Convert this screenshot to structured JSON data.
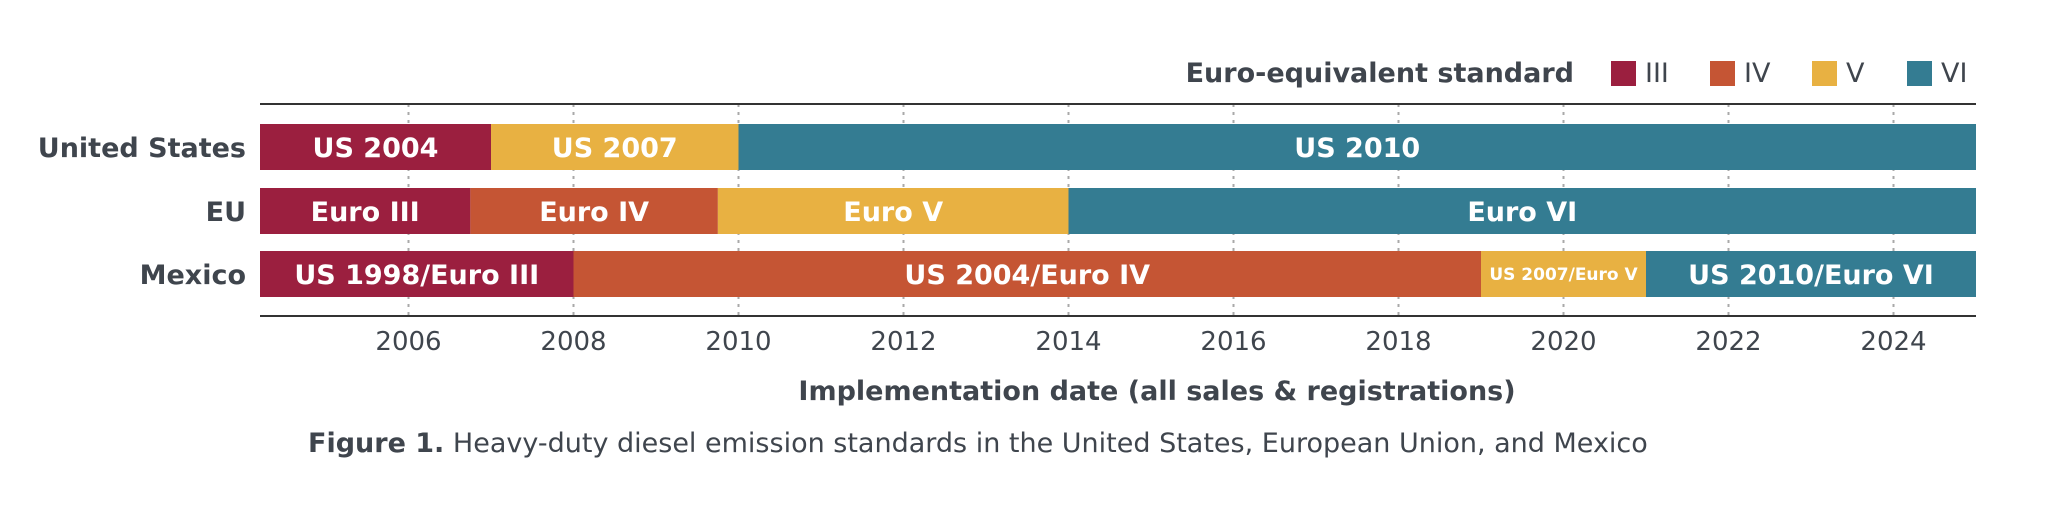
{
  "caption": {
    "label": "Figure 1.",
    "text": "Heavy-duty diesel emission standards in the United States, European Union, and Mexico"
  },
  "chart_data": {
    "type": "bar",
    "orientation": "horizontal-timeline",
    "xlabel": "Implementation date (all sales & registrations)",
    "xlim": [
      2004.2,
      2025
    ],
    "x_ticks": [
      2006,
      2008,
      2010,
      2012,
      2014,
      2016,
      2018,
      2020,
      2022,
      2024
    ],
    "grid": "vertical dotted at ticks",
    "legend": {
      "title": "Euro-equivalent standard",
      "position": "top-right",
      "items": [
        {
          "key": "III",
          "label": "III",
          "color": "#9b1f3f"
        },
        {
          "key": "IV",
          "label": "IV",
          "color": "#c55534"
        },
        {
          "key": "V",
          "label": "V",
          "color": "#e8b142"
        },
        {
          "key": "VI",
          "label": "VI",
          "color": "#347c92"
        }
      ]
    },
    "rows": [
      {
        "label": "United States",
        "segments": [
          {
            "label": "US 2004",
            "start": 2004.2,
            "end": 2007,
            "level": "III"
          },
          {
            "label": "US 2007",
            "start": 2007,
            "end": 2010,
            "level": "V"
          },
          {
            "label": "US 2010",
            "start": 2010,
            "end": 2025,
            "level": "VI"
          }
        ]
      },
      {
        "label": "EU",
        "segments": [
          {
            "label": "Euro III",
            "start": 2004.2,
            "end": 2006.75,
            "level": "III"
          },
          {
            "label": "Euro IV",
            "start": 2006.75,
            "end": 2009.75,
            "level": "IV"
          },
          {
            "label": "Euro V",
            "start": 2009.75,
            "end": 2014,
            "level": "V"
          },
          {
            "label": "Euro VI",
            "start": 2014,
            "end": 2025,
            "level": "VI"
          }
        ]
      },
      {
        "label": "Mexico",
        "segments": [
          {
            "label": "US 1998/Euro III",
            "start": 2004.2,
            "end": 2008,
            "level": "III"
          },
          {
            "label": "US 2004/Euro IV",
            "start": 2008,
            "end": 2019,
            "level": "IV"
          },
          {
            "label": "US 2007/Euro V",
            "start": 2019,
            "end": 2021,
            "level": "V",
            "small": true
          },
          {
            "label": "US 2010/Euro VI",
            "start": 2021,
            "end": 2025,
            "level": "VI"
          }
        ]
      }
    ]
  }
}
